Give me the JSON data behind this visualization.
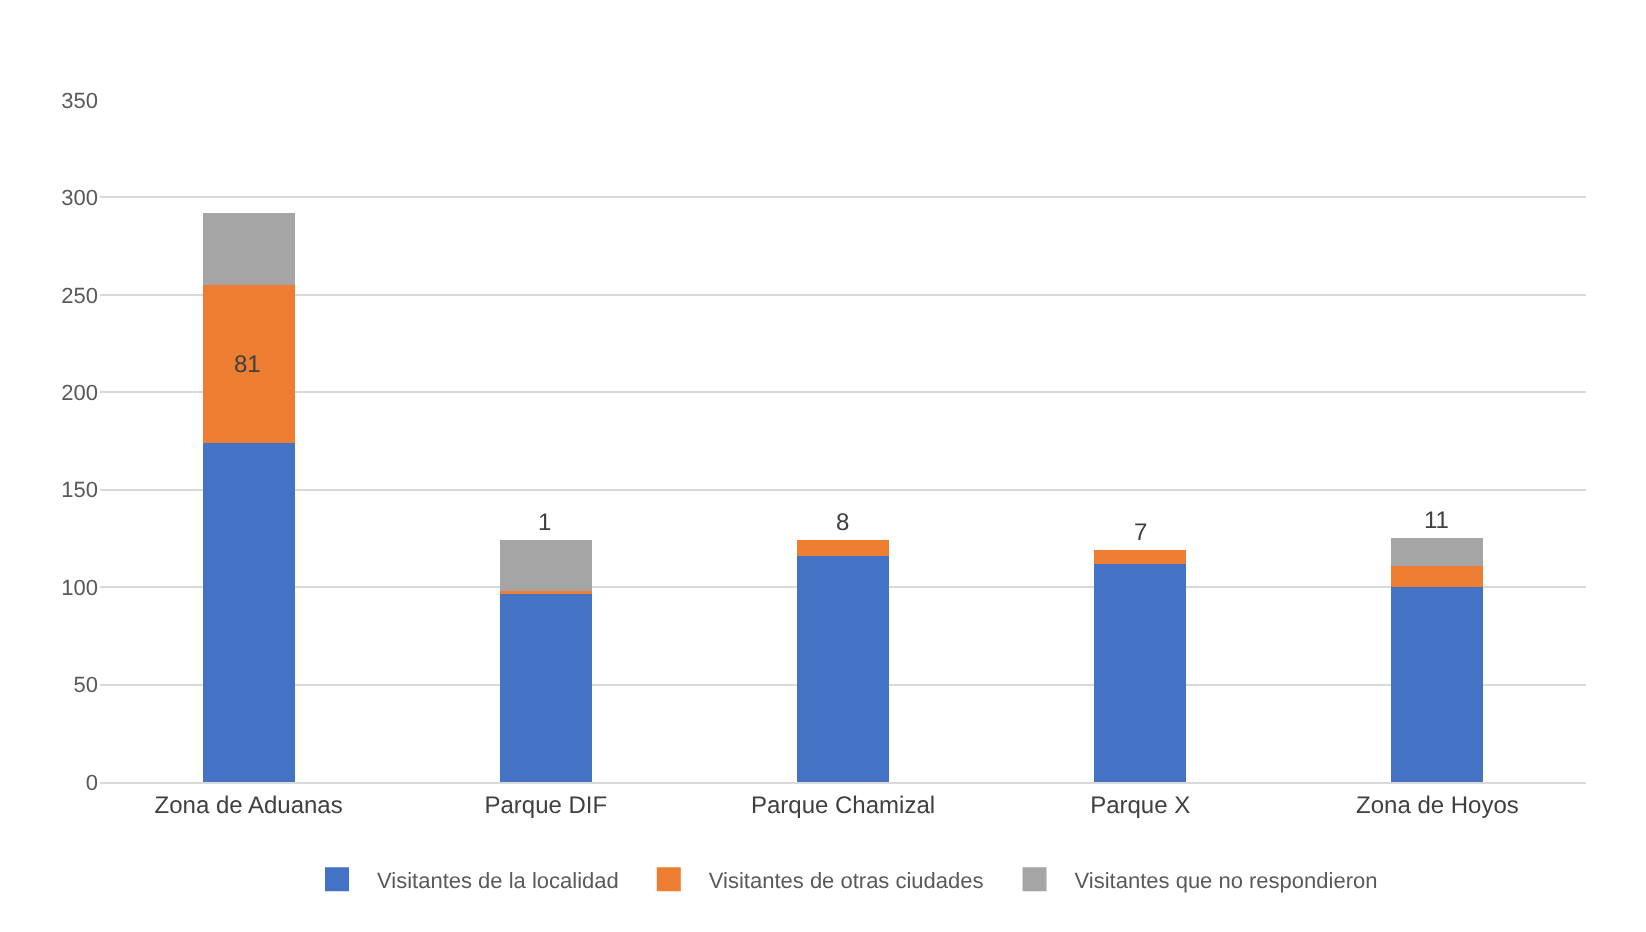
{
  "chart_data": {
    "type": "bar",
    "stacked": true,
    "categories": [
      "Zona de Aduanas",
      "Parque DIF",
      "Parque Chamizal",
      "Parque X",
      "Zona de Hoyos"
    ],
    "series": [
      {
        "name": "Visitantes de la localidad",
        "color": "#4472c4",
        "values": [
          174,
          97,
          116,
          112,
          100
        ]
      },
      {
        "name": "Visitantes de otras ciudades",
        "color": "#ed7d31",
        "values": [
          81,
          1,
          8,
          7,
          11
        ],
        "value_labels": [
          "81",
          "1",
          "8",
          "7",
          "11"
        ]
      },
      {
        "name": "Visitantes que no respondieron",
        "color": "#a5a5a5",
        "values": [
          37,
          26,
          0,
          0,
          14
        ]
      }
    ],
    "ylim": [
      0,
      350
    ],
    "yticks": [
      0,
      50,
      100,
      150,
      200,
      250,
      300,
      350
    ],
    "grid": "y",
    "legend": "bottom"
  }
}
